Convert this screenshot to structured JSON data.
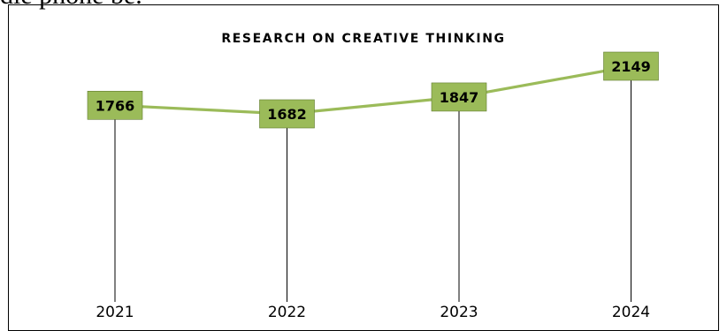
{
  "page": {
    "top_text": "die phone be."
  },
  "chart_data": {
    "type": "line",
    "title": "RESEARCH ON CREATIVE THINKING",
    "categories": [
      "2021",
      "2022",
      "2023",
      "2024"
    ],
    "series": [
      {
        "values": [
          1766,
          1682,
          1847,
          2149
        ]
      }
    ],
    "data_labels": true,
    "drop_lines": true,
    "grid": false,
    "legend": "none",
    "colors": {
      "line": "#9bbb59",
      "label_fill": "#9bbb59",
      "label_border": "#5f7a2d",
      "drop_line": "#000000",
      "text": "#000000"
    }
  }
}
